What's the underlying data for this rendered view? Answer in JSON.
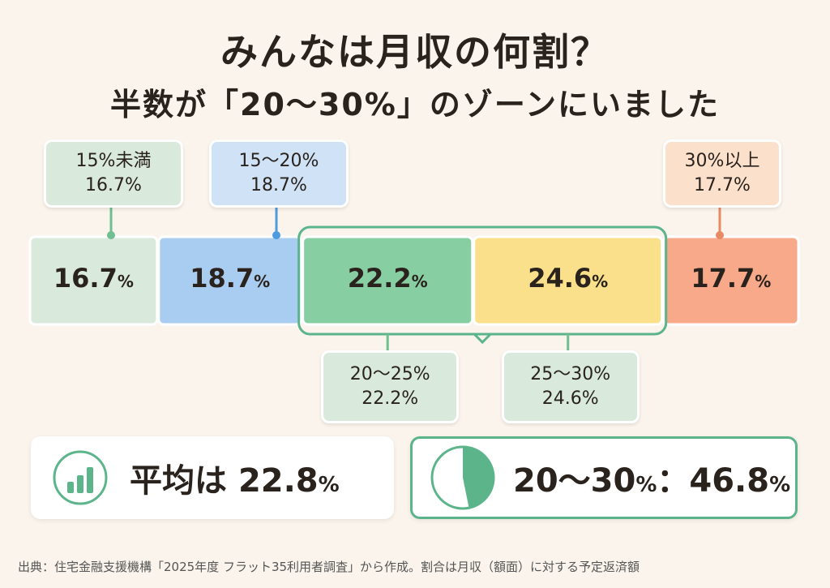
{
  "title": "みんなは月収の何割？",
  "subtitle": "半数が「20〜30%」のゾーンにいました",
  "chart_data": {
    "type": "bar",
    "orientation": "stacked-horizontal",
    "unit": "%",
    "categories": [
      "15%未満",
      "15〜20%",
      "20〜25%",
      "25〜30%",
      "30%以上"
    ],
    "values": [
      16.7,
      18.7,
      22.2,
      24.6,
      17.7
    ],
    "bar_labels": [
      "16.7",
      "18.7",
      "22.2",
      "24.6",
      "17.7"
    ],
    "callout_values": [
      "16.7%",
      "18.7%",
      "22.2%",
      "24.6%",
      "17.7%"
    ],
    "colors": [
      "#d9eadd",
      "#a9cdf0",
      "#87cfa3",
      "#fbe08c",
      "#f7a98a"
    ],
    "callout_colors": [
      "#d9eadd",
      "#cfe2f6",
      "#d9eadd",
      "#d9eadd",
      "#fbe0cc"
    ],
    "marker_colors": [
      "#6fbf90",
      "#4f9be0",
      "#6fbf90",
      "#6fbf90",
      "#e88a63"
    ],
    "highlight_group": [
      2,
      3
    ]
  },
  "summary": {
    "average_text": "平均は",
    "average_value": "22.8",
    "zone_text": "20〜30",
    "zone_value": "46.8",
    "zone_share": 0.468,
    "percent_sign": "%",
    "colon": "："
  },
  "footnote": "出典：住宅金融支援機構「2025年度 フラット35利用者調査」から作成。割合は月収（額面）に対する予定返済額",
  "colors": {
    "accent": "#5bb48a",
    "background": "#faf4ec"
  }
}
